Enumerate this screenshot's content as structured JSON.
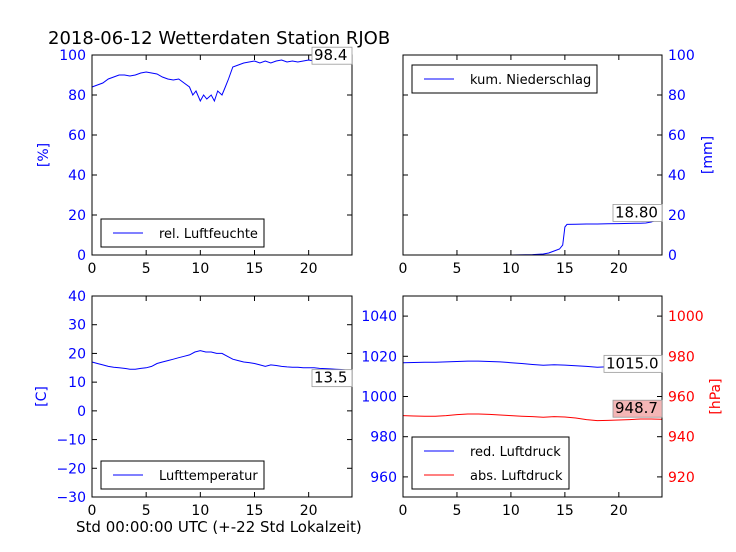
{
  "title": "2018-06-12 Wetterdaten Station RJOB",
  "xlabel": "Std 00:00:00 UTC (+-22 Std Lokalzeit)",
  "colors": {
    "blue": "#0000ff",
    "red": "#ff0000",
    "black": "#000000",
    "red_box": "#f4b6b6"
  },
  "chart_data": [
    {
      "id": "humidity",
      "type": "line",
      "title": "",
      "xlabel": "",
      "ylabel": "[%]",
      "xlim": [
        0,
        24
      ],
      "ylim": [
        0,
        100
      ],
      "xticks": [
        "0",
        "5",
        "10",
        "15",
        "20"
      ],
      "yticks": [
        "0",
        "20",
        "40",
        "60",
        "80",
        "100"
      ],
      "legend_position": "lower-left",
      "annotation": "98.4",
      "series": [
        {
          "name": "rel. Luftfeuchte",
          "color": "#0000ff",
          "x": [
            0,
            0.5,
            1,
            1.5,
            2,
            2.5,
            3,
            3.5,
            4,
            4.5,
            5,
            5.5,
            6,
            6.5,
            7,
            7.5,
            8,
            8.5,
            9,
            9.3,
            9.6,
            10,
            10.3,
            10.6,
            11,
            11.3,
            11.6,
            12,
            12.3,
            12.6,
            13,
            13.5,
            14,
            14.5,
            15,
            15.5,
            16,
            16.5,
            17,
            17.5,
            18,
            18.5,
            19,
            19.5,
            20,
            20.5,
            21,
            21.5,
            22,
            22.5,
            23,
            23.5,
            24
          ],
          "y": [
            84,
            85,
            86,
            88,
            89,
            90,
            90,
            89.5,
            90,
            91,
            91.5,
            91,
            90.5,
            89,
            88,
            87.5,
            88,
            86,
            84,
            80,
            82,
            77,
            80,
            78,
            80,
            77,
            82,
            80,
            84,
            88,
            94,
            95,
            96,
            96.5,
            97,
            96,
            97,
            96,
            97,
            97.5,
            96.5,
            97,
            96.5,
            97,
            97.5,
            97,
            97,
            96.5,
            96,
            97,
            97.5,
            98,
            98.4
          ]
        }
      ]
    },
    {
      "id": "precip",
      "type": "line",
      "title": "",
      "xlabel": "",
      "ylabel": "[mm]",
      "xlim": [
        0,
        24
      ],
      "ylim": [
        0,
        100
      ],
      "xticks": [
        "0",
        "5",
        "10",
        "15",
        "20"
      ],
      "yticks": [
        "0",
        "20",
        "40",
        "60",
        "80",
        "100"
      ],
      "legend_position": "upper-left",
      "annotation": "18.80",
      "series": [
        {
          "name": "kum. Niederschlag",
          "color": "#0000ff",
          "x": [
            0,
            5,
            10,
            12,
            13,
            13.5,
            14,
            14.5,
            14.8,
            15.0,
            15.2,
            16,
            17,
            18,
            19,
            20,
            21,
            22,
            22.5,
            23,
            23.5,
            24
          ],
          "y": [
            0,
            0,
            0,
            0.2,
            0.5,
            1,
            2,
            3,
            5,
            14,
            15.3,
            15.4,
            15.5,
            15.5,
            15.6,
            15.7,
            15.8,
            15.9,
            16,
            16.5,
            17.5,
            18.8
          ]
        }
      ]
    },
    {
      "id": "temperature",
      "type": "line",
      "title": "",
      "xlabel": "",
      "ylabel": "[C]",
      "xlim": [
        0,
        24
      ],
      "ylim": [
        -30,
        40
      ],
      "xticks": [
        "0",
        "5",
        "10",
        "15",
        "20"
      ],
      "yticks": [
        "−30",
        "−20",
        "−10",
        "0",
        "10",
        "20",
        "30",
        "40"
      ],
      "legend_position": "lower-left",
      "annotation": "13.5",
      "series": [
        {
          "name": "Lufttemperatur",
          "color": "#0000ff",
          "x": [
            0,
            0.5,
            1,
            1.5,
            2,
            2.5,
            3,
            3.5,
            4,
            4.5,
            5,
            5.5,
            6,
            6.5,
            7,
            7.5,
            8,
            8.5,
            9,
            9.5,
            10,
            10.5,
            11,
            11.5,
            12,
            12.5,
            13,
            13.5,
            14,
            14.5,
            15,
            15.5,
            16,
            16.5,
            17,
            17.5,
            18,
            18.5,
            19,
            19.5,
            20,
            20.5,
            21,
            21.5,
            22,
            22.5,
            23,
            23.5,
            24
          ],
          "y": [
            17,
            16.5,
            16,
            15.5,
            15.2,
            15,
            14.8,
            14.5,
            14.5,
            14.8,
            15,
            15.5,
            16.5,
            17,
            17.5,
            18,
            18.5,
            19,
            19.5,
            20.5,
            21,
            20.5,
            20.5,
            20,
            20,
            19,
            18,
            17.5,
            17,
            16.8,
            16.5,
            16,
            15.5,
            16,
            15.8,
            15.5,
            15.3,
            15.2,
            15.2,
            15,
            15,
            15,
            14.8,
            14.7,
            14.6,
            14.5,
            14.4,
            14.2,
            14
          ]
        }
      ]
    },
    {
      "id": "pressure",
      "type": "line",
      "title": "",
      "xlabel": "",
      "ylabel": "[hPa]",
      "xlim": [
        0,
        24
      ],
      "ylim": [
        950,
        1050
      ],
      "ylim_right": [
        910,
        1010
      ],
      "xticks": [
        "0",
        "5",
        "10",
        "15",
        "20"
      ],
      "yticks": [
        "960",
        "980",
        "1000",
        "1020",
        "1040"
      ],
      "yticks_right": [
        "920",
        "940",
        "960",
        "980",
        "1000"
      ],
      "legend_position": "lower-left",
      "annotation": "1015.0",
      "annotation_secondary": "948.7",
      "series": [
        {
          "name": "red. Luftdruck",
          "color": "#0000ff",
          "axis": "left",
          "x": [
            0,
            1,
            2,
            3,
            4,
            5,
            6,
            7,
            8,
            9,
            10,
            11,
            12,
            13,
            14,
            15,
            16,
            17,
            18,
            19,
            20,
            21,
            22,
            23,
            24
          ],
          "y": [
            1016.8,
            1016.9,
            1017,
            1017,
            1017.2,
            1017.4,
            1017.6,
            1017.6,
            1017.4,
            1017.2,
            1016.8,
            1016.4,
            1015.9,
            1015.5,
            1015.8,
            1015.6,
            1015.3,
            1015,
            1014.6,
            1014.8,
            1015,
            1015.1,
            1015.2,
            1015.1,
            1015
          ]
        },
        {
          "name": "abs. Luftdruck",
          "color": "#ff0000",
          "axis": "right",
          "x": [
            0,
            1,
            2,
            3,
            4,
            5,
            6,
            7,
            8,
            9,
            10,
            11,
            12,
            13,
            14,
            15,
            16,
            17,
            18,
            19,
            20,
            21,
            22,
            23,
            24
          ],
          "y": [
            950.5,
            950.3,
            950.2,
            950.2,
            950.5,
            951,
            951.3,
            951.3,
            951.1,
            950.8,
            950.5,
            950.2,
            950,
            949.7,
            950,
            949.8,
            949.3,
            948.5,
            948,
            948.1,
            948.3,
            948.5,
            948.8,
            948.8,
            948.7
          ]
        }
      ]
    }
  ]
}
